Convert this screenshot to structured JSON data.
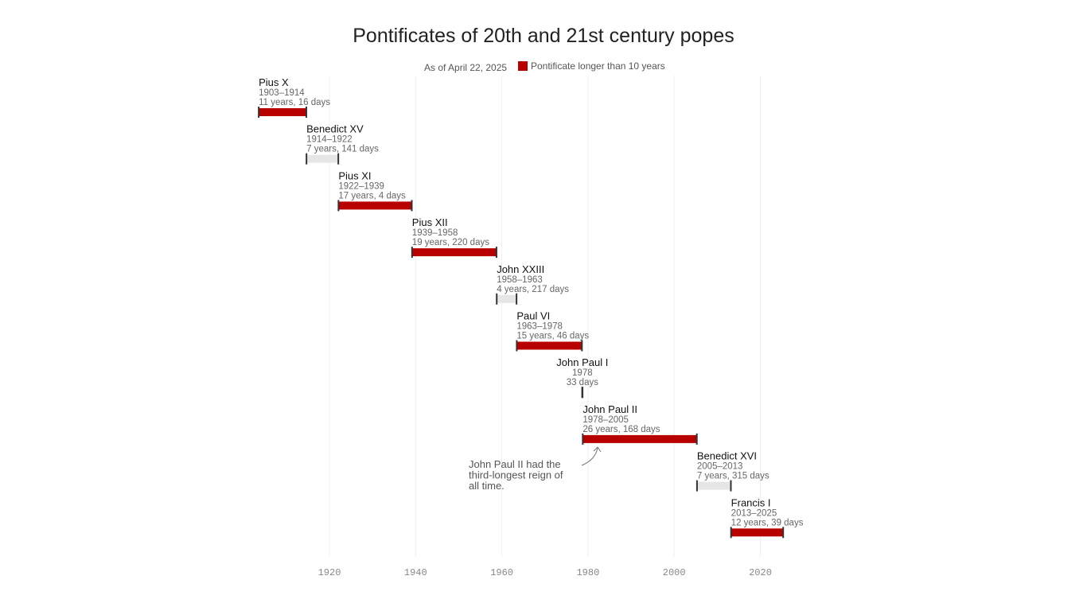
{
  "chart_data": {
    "type": "bar",
    "subtype": "timeline-range",
    "title": "Pontificates of 20th and 21st century popes",
    "subtitle": "As of April 22, 2025",
    "legend": [
      {
        "label": "Pontificate longer than 10 years",
        "color": "#b80000"
      }
    ],
    "legend_placement": "top",
    "short_color": "#e6e6e6",
    "xlim": [
      1903,
      2030
    ],
    "xticks": [
      1920,
      1940,
      1960,
      1980,
      2000,
      2020
    ],
    "grid": "vertical",
    "popes": [
      {
        "name": "Pius X",
        "years": "1903–1914",
        "duration": "11 years, 16 days",
        "start": 1903.59,
        "end": 1914.64,
        "long": true
      },
      {
        "name": "Benedict XV",
        "years": "1914–1922",
        "duration": "7 years, 141 days",
        "start": 1914.67,
        "end": 1922.06,
        "long": false
      },
      {
        "name": "Pius XI",
        "years": "1922–1939",
        "duration": "17 years, 4 days",
        "start": 1922.1,
        "end": 1939.11,
        "long": true
      },
      {
        "name": "Pius XII",
        "years": "1939–1958",
        "duration": "19 years, 220 days",
        "start": 1939.17,
        "end": 1958.77,
        "long": true
      },
      {
        "name": "John XXIII",
        "years": "1958–1963",
        "duration": "4 years, 217 days",
        "start": 1958.82,
        "end": 1963.42,
        "long": false
      },
      {
        "name": "Paul VI",
        "years": "1963–1978",
        "duration": "15 years, 46 days",
        "start": 1963.47,
        "end": 1978.6,
        "long": true
      },
      {
        "name": "John Paul I",
        "years": "1978",
        "duration": "33 days",
        "start": 1978.65,
        "end": 1978.74,
        "long": false
      },
      {
        "name": "John Paul II",
        "years": "1978–2005",
        "duration": "26 years, 168 days",
        "start": 1978.79,
        "end": 2005.26,
        "long": true
      },
      {
        "name": "Benedict XVI",
        "years": "2005–2013",
        "duration": "7 years, 315 days",
        "start": 2005.3,
        "end": 2013.16,
        "long": false
      },
      {
        "name": "Francis I",
        "years": "2013–2025",
        "duration": "12 years, 39 days",
        "start": 2013.2,
        "end": 2025.3,
        "long": true
      }
    ],
    "annotation": [
      "John Paul II had the",
      "third-longest reign of",
      "all time."
    ]
  }
}
